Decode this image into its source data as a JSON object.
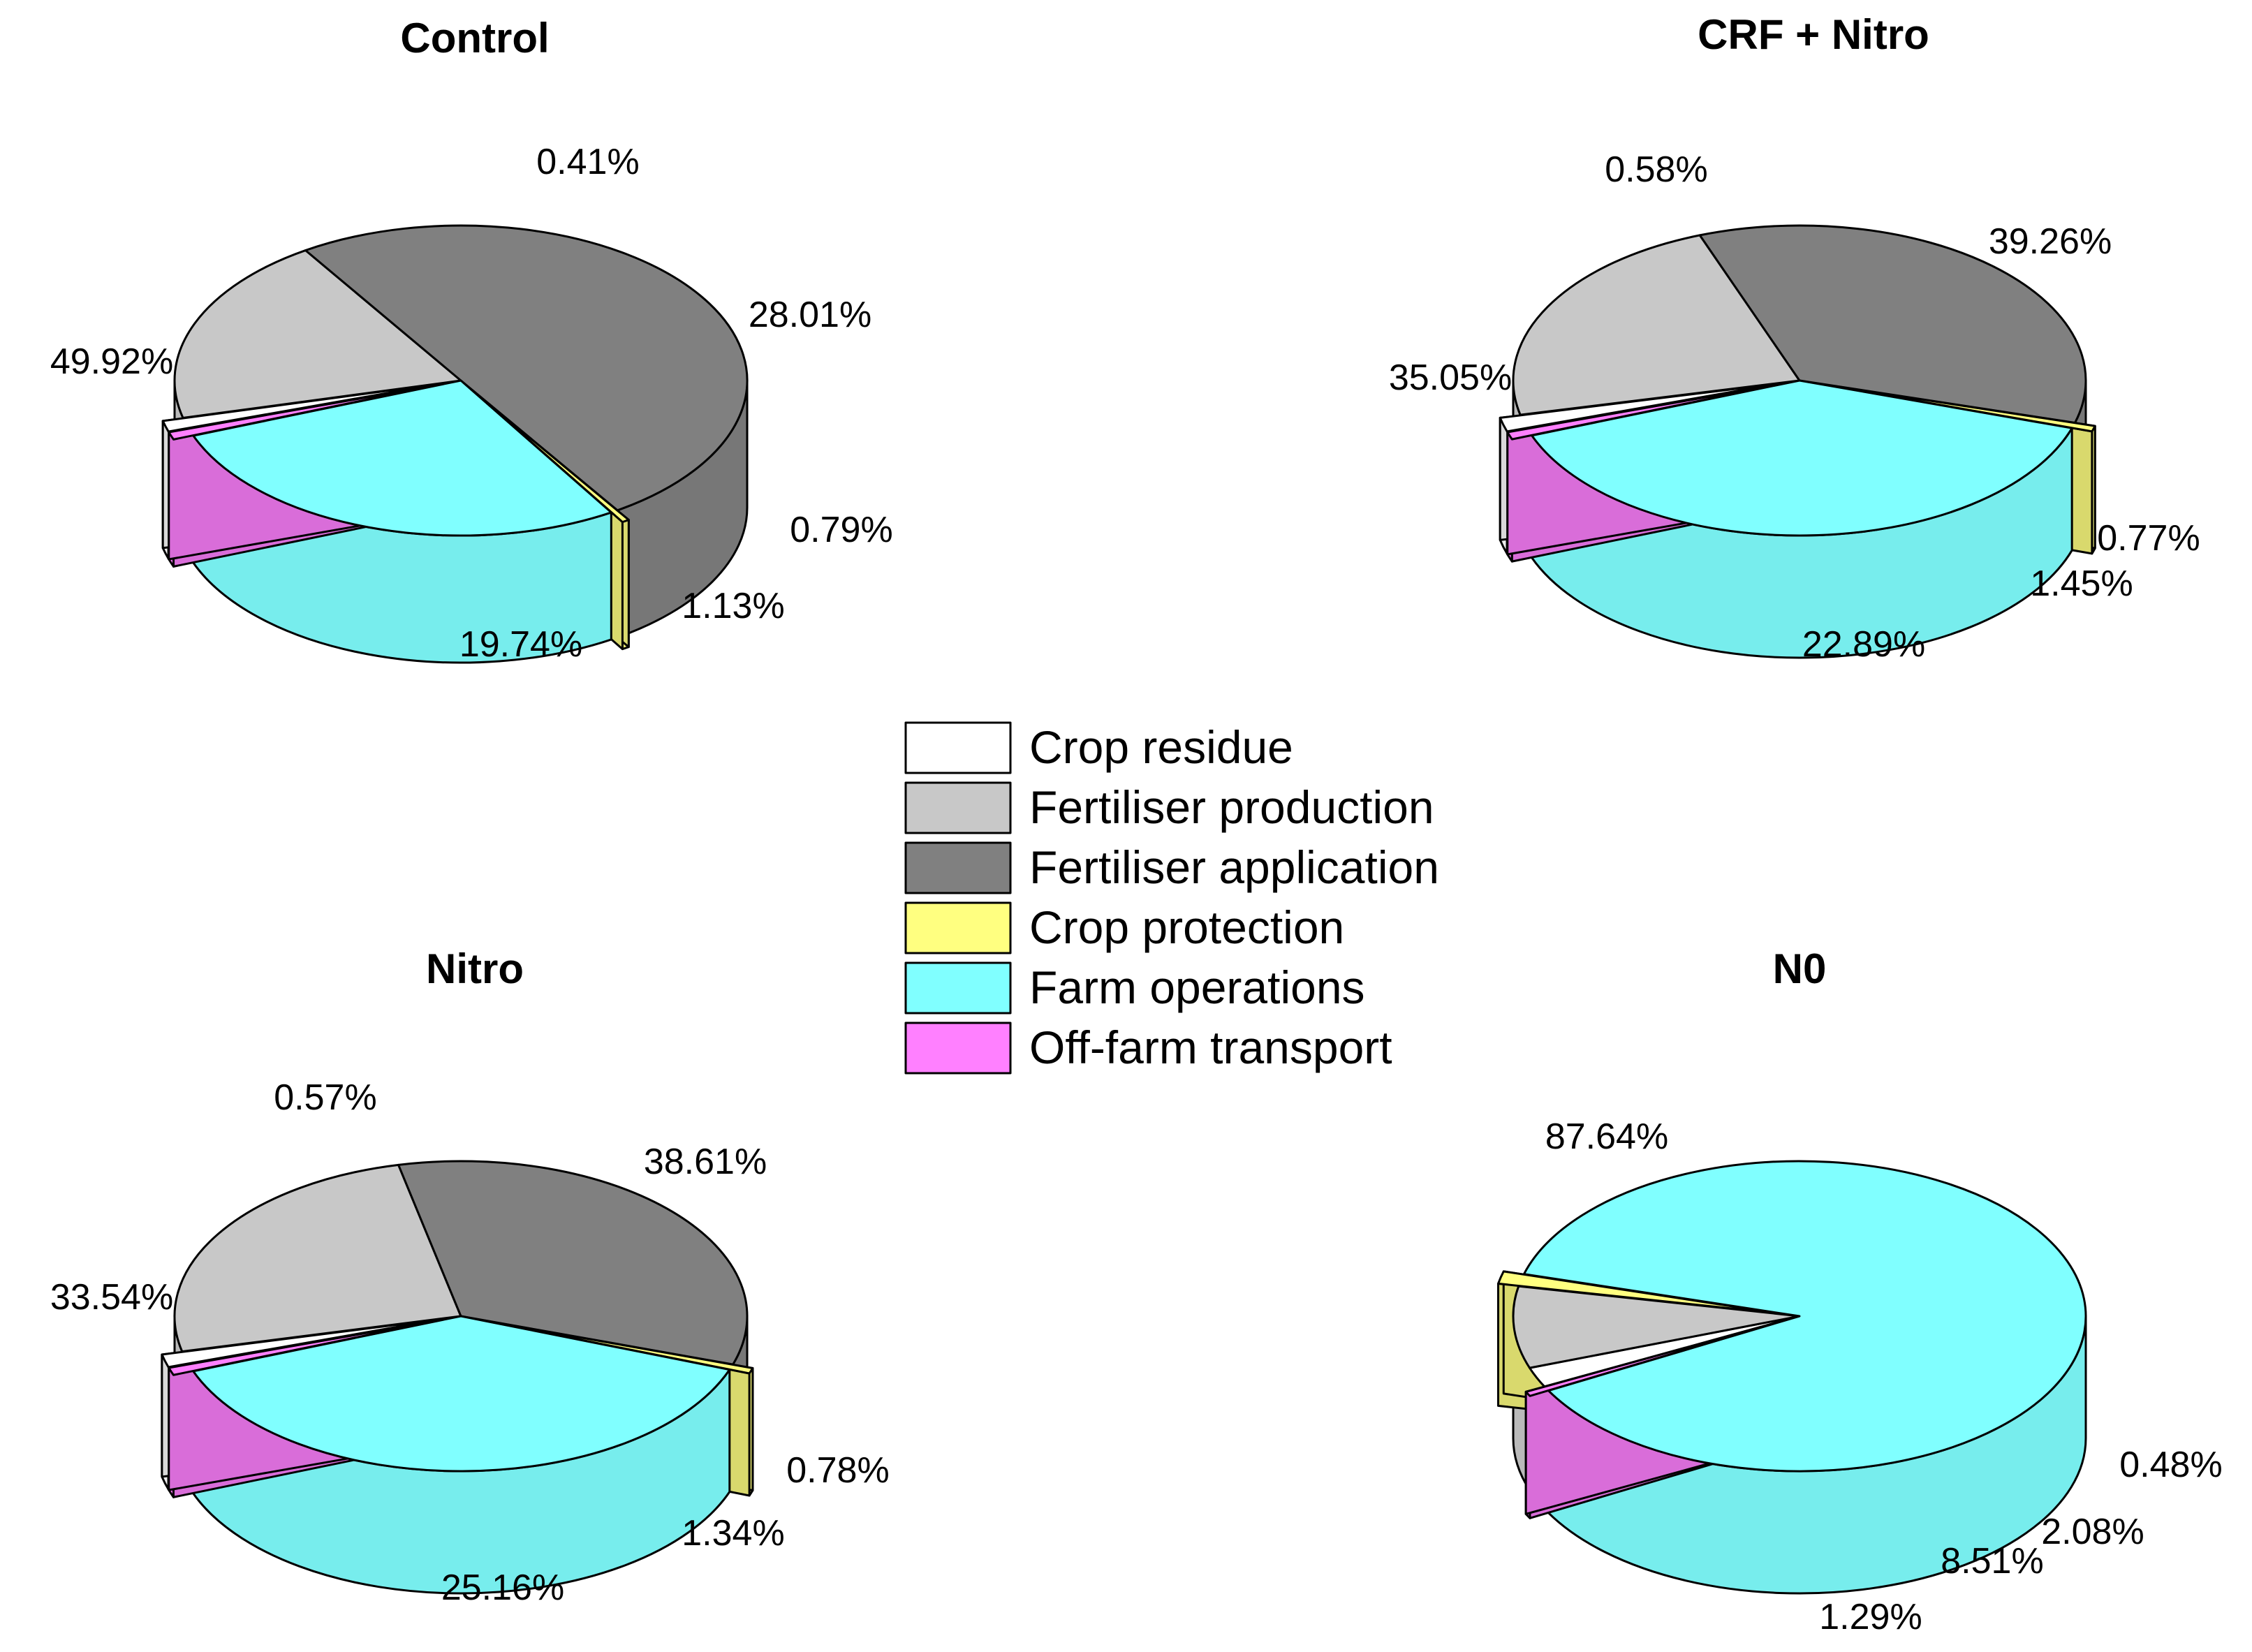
{
  "chart_data": [
    {
      "type": "pie",
      "title": "Control",
      "slices": [
        {
          "category": "Crop residue",
          "value": 1.13,
          "label": "1.13%"
        },
        {
          "category": "Fertiliser production",
          "value": 19.74,
          "label": "19.74%"
        },
        {
          "category": "Fertiliser application",
          "value": 49.92,
          "label": "49.92%"
        },
        {
          "category": "Crop protection",
          "value": 0.41,
          "label": "0.41%"
        },
        {
          "category": "Farm operations",
          "value": 28.01,
          "label": "28.01%"
        },
        {
          "category": "Off-farm transport",
          "value": 0.79,
          "label": "0.79%"
        }
      ]
    },
    {
      "type": "pie",
      "title": "CRF + Nitro",
      "slices": [
        {
          "category": "Crop residue",
          "value": 1.45,
          "label": "1.45%"
        },
        {
          "category": "Fertiliser production",
          "value": 22.89,
          "label": "22.89%"
        },
        {
          "category": "Fertiliser application",
          "value": 35.05,
          "label": "35.05%"
        },
        {
          "category": "Crop protection",
          "value": 0.58,
          "label": "0.58%"
        },
        {
          "category": "Farm operations",
          "value": 39.26,
          "label": "39.26%"
        },
        {
          "category": "Off-farm transport",
          "value": 0.77,
          "label": "0.77%"
        }
      ]
    },
    {
      "type": "pie",
      "title": "Nitro",
      "slices": [
        {
          "category": "Crop residue",
          "value": 1.34,
          "label": "1.34%"
        },
        {
          "category": "Fertiliser production",
          "value": 25.16,
          "label": "25.16%"
        },
        {
          "category": "Fertiliser application",
          "value": 33.54,
          "label": "33.54%"
        },
        {
          "category": "Crop protection",
          "value": 0.57,
          "label": "0.57%"
        },
        {
          "category": "Farm operations",
          "value": 38.61,
          "label": "38.61%"
        },
        {
          "category": "Off-farm transport",
          "value": 0.78,
          "label": "0.78%"
        }
      ]
    },
    {
      "type": "pie",
      "title": "N0",
      "slices": [
        {
          "category": "Crop residue",
          "value": 2.08,
          "label": "2.08%"
        },
        {
          "category": "Fertiliser production",
          "value": 8.51,
          "label": "8.51%"
        },
        {
          "category": "Crop protection",
          "value": 1.29,
          "label": "1.29%"
        },
        {
          "category": "Farm operations",
          "value": 87.64,
          "label": "87.64%"
        },
        {
          "category": "Off-farm transport",
          "value": 0.48,
          "label": "0.48%"
        }
      ]
    }
  ],
  "legend": {
    "items": [
      {
        "label": "Crop residue",
        "color": "#ffffff"
      },
      {
        "label": "Fertiliser production",
        "color": "#c8c8c8"
      },
      {
        "label": "Fertiliser application",
        "color": "#808080"
      },
      {
        "label": "Crop protection",
        "color": "#ffff80"
      },
      {
        "label": "Farm operations",
        "color": "#80ffff"
      },
      {
        "label": "Off-farm transport",
        "color": "#ff80ff"
      }
    ]
  }
}
